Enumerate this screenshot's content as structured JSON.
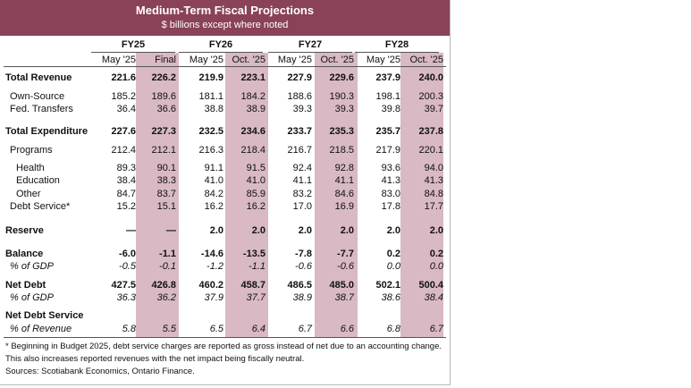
{
  "header": {
    "title": "Medium-Term Fiscal Projections",
    "subtitle": "$ billions except where noted",
    "color": "#8a4257"
  },
  "shade_color": "#d8b9c4",
  "years": [
    "FY25",
    "FY26",
    "FY27",
    "FY28"
  ],
  "subheaders": [
    "May '25",
    "Final",
    "May '25",
    "Oct. '25",
    "May '25",
    "Oct. '25",
    "May '25",
    "Oct. '25"
  ],
  "rows": [
    {
      "label": "Total Revenue",
      "style": "bold",
      "indent": 0,
      "values": [
        "221.6",
        "226.2",
        "219.9",
        "223.1",
        "227.9",
        "229.6",
        "237.9",
        "240.0"
      ]
    },
    {
      "label": "Own-Source",
      "style": "normal",
      "indent": 1,
      "values": [
        "185.2",
        "189.6",
        "181.1",
        "184.2",
        "188.6",
        "190.3",
        "198.1",
        "200.3"
      ]
    },
    {
      "label": "Fed. Transfers",
      "style": "normal",
      "indent": 1,
      "values": [
        "36.4",
        "36.6",
        "38.8",
        "38.9",
        "39.3",
        "39.3",
        "39.8",
        "39.7"
      ]
    },
    {
      "label": "Total Expenditure",
      "style": "bold",
      "indent": 0,
      "values": [
        "227.6",
        "227.3",
        "232.5",
        "234.6",
        "233.7",
        "235.3",
        "235.7",
        "237.8"
      ]
    },
    {
      "label": "Programs",
      "style": "normal",
      "indent": 1,
      "values": [
        "212.4",
        "212.1",
        "216.3",
        "218.4",
        "216.7",
        "218.5",
        "217.9",
        "220.1"
      ]
    },
    {
      "label": "Health",
      "style": "normal",
      "indent": 2,
      "values": [
        "89.3",
        "90.1",
        "91.1",
        "91.5",
        "92.4",
        "92.8",
        "93.6",
        "94.0"
      ]
    },
    {
      "label": "Education",
      "style": "normal",
      "indent": 2,
      "values": [
        "38.4",
        "38.3",
        "41.0",
        "41.0",
        "41.1",
        "41.1",
        "41.3",
        "41.3"
      ]
    },
    {
      "label": "Other",
      "style": "normal",
      "indent": 2,
      "values": [
        "84.7",
        "83.7",
        "84.2",
        "85.9",
        "83.2",
        "84.6",
        "83.0",
        "84.8"
      ]
    },
    {
      "label": "Debt Service*",
      "style": "normal",
      "indent": 1,
      "values": [
        "15.2",
        "15.1",
        "16.2",
        "16.2",
        "17.0",
        "16.9",
        "17.8",
        "17.7"
      ]
    },
    {
      "label": "Reserve",
      "style": "bold",
      "indent": 0,
      "values": [
        "—",
        "—",
        "2.0",
        "2.0",
        "2.0",
        "2.0",
        "2.0",
        "2.0"
      ]
    },
    {
      "label": "Balance",
      "style": "bold",
      "indent": 0,
      "values": [
        "-6.0",
        "-1.1",
        "-14.6",
        "-13.5",
        "-7.8",
        "-7.7",
        "0.2",
        "0.2"
      ]
    },
    {
      "label": "% of GDP",
      "style": "italic",
      "indent": 1,
      "values": [
        "-0.5",
        "-0.1",
        "-1.2",
        "-1.1",
        "-0.6",
        "-0.6",
        "0.0",
        "0.0"
      ]
    },
    {
      "label": "Net Debt",
      "style": "bold",
      "indent": 0,
      "values": [
        "427.5",
        "426.8",
        "460.2",
        "458.7",
        "486.5",
        "485.0",
        "502.1",
        "500.4"
      ]
    },
    {
      "label": "% of GDP",
      "style": "italic",
      "indent": 1,
      "values": [
        "36.3",
        "36.2",
        "37.9",
        "37.7",
        "38.9",
        "38.7",
        "38.6",
        "38.4"
      ]
    },
    {
      "label": "Net Debt Service",
      "style": "bold",
      "indent": 0,
      "values": [
        "",
        "",
        "",
        "",
        "",
        "",
        "",
        ""
      ]
    },
    {
      "label": "% of Revenue",
      "style": "italic",
      "indent": 1,
      "values": [
        "5.8",
        "5.5",
        "6.5",
        "6.4",
        "6.7",
        "6.6",
        "6.8",
        "6.7"
      ]
    }
  ],
  "footnotes": [
    "* Beginning in Budget 2025, debt service charges are reported as gross instead of net due to an accounting change. This also increases reported revenues with the net impact being fiscally neutral.",
    "Sources: Scotiabank Economics, Ontario Finance."
  ]
}
